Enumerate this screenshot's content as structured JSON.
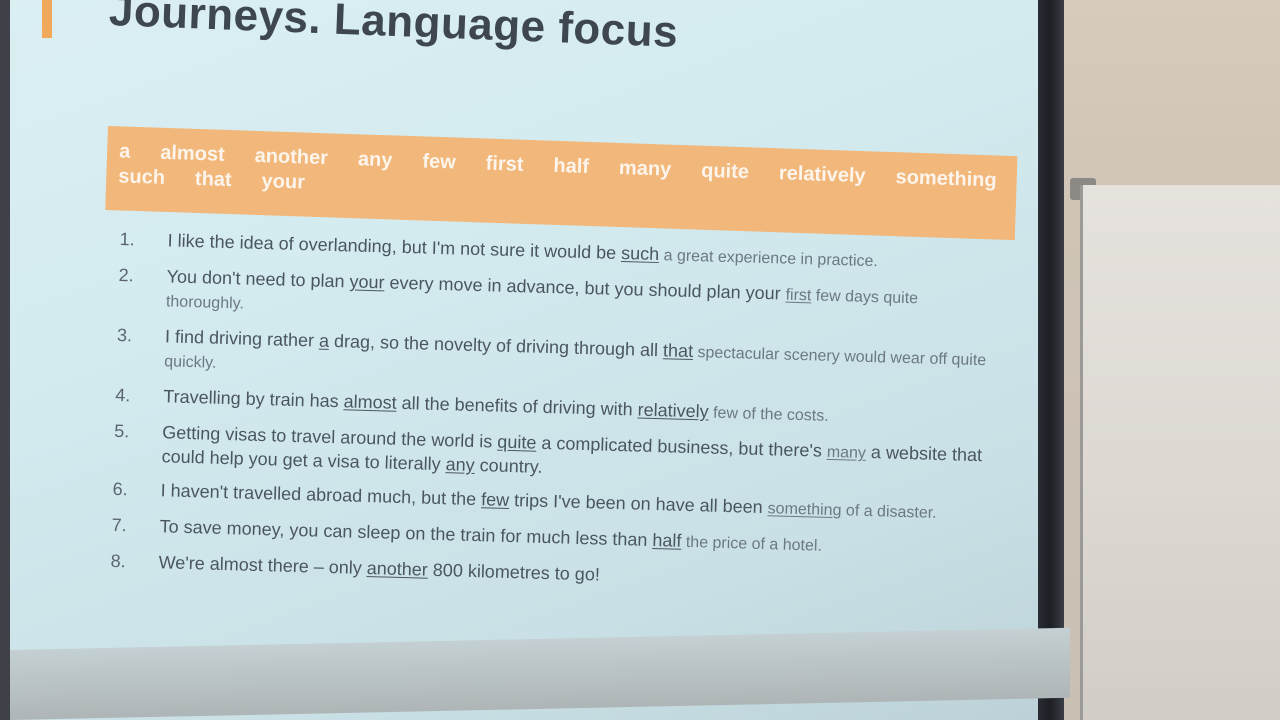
{
  "slide": {
    "title": "Journeys. Language focus",
    "word_bank": {
      "row1": [
        "a",
        "almost",
        "another",
        "any",
        "few",
        "first",
        "half",
        "many",
        "quite",
        "relatively",
        "something"
      ],
      "row2": [
        "such",
        "that",
        "your"
      ]
    },
    "items": [
      {
        "num": "1.",
        "pre": "I like the idea of overlanding, but I'm not sure it would be ",
        "answer": "such",
        "post": " a great experience in practice."
      },
      {
        "num": "2.",
        "pre": "You don't need to plan ",
        "answer": "your",
        "mid": " every move in advance, but you should plan your ",
        "answer2": "first",
        "post": " few days quite thoroughly."
      },
      {
        "num": "3.",
        "pre": "I find driving rather ",
        "answer": "a",
        "mid": " drag, so the novelty of driving through all ",
        "answer2": "that",
        "post": " spectacular scenery would wear off quite quickly."
      },
      {
        "num": "4.",
        "pre": "Travelling by train has ",
        "answer": "almost",
        "mid": " all the benefits of driving with ",
        "answer2": "relatively",
        "post": " few of the costs."
      },
      {
        "num": "5.",
        "pre": "Getting visas to travel around the world is ",
        "answer": "quite",
        "mid": " a complicated business, but there's ",
        "answer2": "many",
        "mid2": " a website that could help you get a visa to literally ",
        "answer3": "any",
        "post": " country."
      },
      {
        "num": "6.",
        "pre": "I haven't travelled abroad much, but the ",
        "answer": "few",
        "mid": " trips I've been on have all been ",
        "answer2": "something",
        "post": " of a disaster."
      },
      {
        "num": "7.",
        "pre": "To save money, you can sleep on the train for much less than ",
        "answer": "half",
        "post": " the price of a hotel."
      },
      {
        "num": "8.",
        "pre": "We're almost there – only ",
        "answer": "another",
        "post": " 800 kilometres to go!"
      }
    ]
  },
  "colors": {
    "slide_bg": "#d2eaee",
    "word_bank_bg": "#f2b77a",
    "title_accent": "#f0a85a",
    "text": "#4b5560"
  }
}
